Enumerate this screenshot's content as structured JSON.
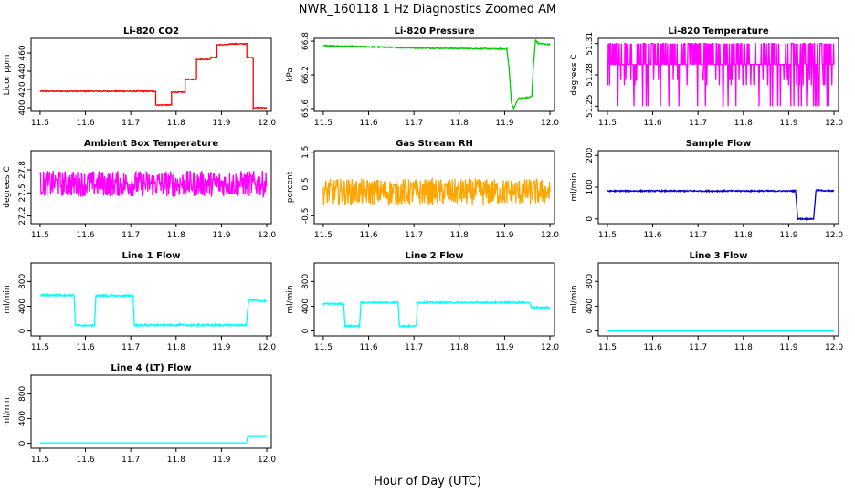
{
  "figure": {
    "title": "NWR_160118  1 Hz Diagnostics Zoomed AM",
    "xlabel": "Hour of Day (UTC)"
  },
  "chart_data": [
    {
      "type": "line",
      "title": "Li-820 CO2",
      "ylabel": "Licor ppm",
      "color": "#ff0000",
      "xlim": [
        11.48,
        12.01
      ],
      "xticks": [
        "11.5",
        "11.6",
        "11.7",
        "11.8",
        "11.9",
        "12.0"
      ],
      "ylim": [
        396,
        476
      ],
      "yticks": [
        "400",
        "420",
        "440",
        "460"
      ],
      "noise": 0.5,
      "x": [
        11.5,
        11.755,
        11.755,
        11.79,
        11.79,
        11.82,
        11.82,
        11.845,
        11.845,
        11.875,
        11.875,
        11.89,
        11.89,
        11.917,
        11.917,
        11.956,
        11.956,
        11.97,
        11.97,
        11.97,
        12.0
      ],
      "y": [
        418,
        418,
        403,
        403,
        417,
        417,
        431,
        431,
        453,
        453,
        455,
        455,
        469,
        469,
        470,
        470,
        455,
        455,
        420,
        400,
        400
      ]
    },
    {
      "type": "line",
      "title": "Li-820 Pressure",
      "ylabel": "kPa",
      "color": "#00cc00",
      "xlim": [
        11.48,
        12.01
      ],
      "xticks": [
        "11.5",
        "11.6",
        "11.7",
        "11.8",
        "11.9",
        "12.0"
      ],
      "ylim": [
        65.55,
        66.85
      ],
      "yticks": [
        "65.6",
        "66.2",
        "66.8"
      ],
      "noise": 0.01,
      "x": [
        11.5,
        11.6,
        11.7,
        11.8,
        11.905,
        11.91,
        11.915,
        11.92,
        11.93,
        11.955,
        11.96,
        11.963,
        11.968,
        11.975,
        12.0
      ],
      "y": [
        66.72,
        66.7,
        66.68,
        66.67,
        66.66,
        66.3,
        65.7,
        65.6,
        65.78,
        65.8,
        65.82,
        66.3,
        66.82,
        66.76,
        66.74
      ]
    },
    {
      "type": "line",
      "title": "Li-820 Temperature",
      "ylabel": "degrees C",
      "color": "#ff00ff",
      "xlim": [
        11.48,
        12.01
      ],
      "xticks": [
        "11.5",
        "11.6",
        "11.7",
        "11.8",
        "11.9",
        "12.0"
      ],
      "ylim": [
        51.245,
        51.315
      ],
      "yticks": [
        "51.25",
        "51.28",
        "51.31"
      ],
      "x": [
        11.5,
        12.0
      ],
      "y": [
        51.29,
        51.29
      ],
      "levels": [
        51.25,
        51.27,
        51.275,
        51.29,
        51.31
      ]
    },
    {
      "type": "line",
      "title": "Ambient Box Temperature",
      "ylabel": "degrees C",
      "color": "#ff00ff",
      "xlim": [
        11.48,
        12.01
      ],
      "xticks": [
        "11.5",
        "11.6",
        "11.7",
        "11.8",
        "11.9",
        "12.0"
      ],
      "ylim": [
        27.1,
        28.05
      ],
      "yticks": [
        "27.2",
        "27.5",
        "27.8"
      ],
      "noise": 0.17,
      "x": [
        11.5,
        12.0
      ],
      "y": [
        27.62,
        27.62
      ]
    },
    {
      "type": "line",
      "title": "Gas Stream RH",
      "ylabel": "percent",
      "color": "#ffa500",
      "xlim": [
        11.48,
        12.01
      ],
      "xticks": [
        "11.5",
        "11.6",
        "11.7",
        "11.8",
        "11.9",
        "12.0"
      ],
      "ylim": [
        -0.75,
        1.55
      ],
      "yticks": [
        "-0.5",
        "0.5",
        "1.5"
      ],
      "noise": 0.42,
      "x": [
        11.5,
        12.0
      ],
      "y": [
        0.25,
        0.25
      ]
    },
    {
      "type": "line",
      "title": "Sample Flow",
      "ylabel": "ml/min",
      "color": "#0000cc",
      "xlim": [
        11.48,
        12.01
      ],
      "xticks": [
        "11.5",
        "11.6",
        "11.7",
        "11.8",
        "11.9",
        "12.0"
      ],
      "ylim": [
        -15,
        215
      ],
      "yticks": [
        "0",
        "100",
        "200"
      ],
      "noise": 2,
      "x": [
        11.5,
        11.915,
        11.918,
        11.92,
        11.955,
        11.958,
        11.96,
        12.0
      ],
      "y": [
        88,
        88,
        40,
        0,
        0,
        50,
        90,
        88
      ]
    },
    {
      "type": "line",
      "title": "Line 1 Flow",
      "ylabel": "ml/min",
      "color": "#00ffff",
      "xlim": [
        11.48,
        12.01
      ],
      "xticks": [
        "11.5",
        "11.6",
        "11.7",
        "11.8",
        "11.9",
        "12.0"
      ],
      "ylim": [
        -80,
        1100
      ],
      "yticks": [
        "0",
        "400",
        "800"
      ],
      "noise": 15,
      "x": [
        11.5,
        11.575,
        11.578,
        11.62,
        11.623,
        11.705,
        11.708,
        11.955,
        11.96,
        12.0
      ],
      "y": [
        580,
        580,
        90,
        90,
        570,
        570,
        95,
        95,
        500,
        480
      ]
    },
    {
      "type": "line",
      "title": "Line 2 Flow",
      "ylabel": "ml/min",
      "color": "#00ffff",
      "xlim": [
        11.48,
        12.01
      ],
      "xticks": [
        "11.5",
        "11.6",
        "11.7",
        "11.8",
        "11.9",
        "12.0"
      ],
      "ylim": [
        -80,
        1100
      ],
      "yticks": [
        "0",
        "400",
        "800"
      ],
      "noise": 12,
      "x": [
        11.5,
        11.545,
        11.548,
        11.58,
        11.583,
        11.665,
        11.668,
        11.705,
        11.708,
        11.955,
        11.96,
        12.0
      ],
      "y": [
        440,
        440,
        80,
        80,
        460,
        460,
        80,
        80,
        460,
        460,
        380,
        380
      ]
    },
    {
      "type": "line",
      "title": "Line 3 Flow",
      "ylabel": "ml/min",
      "color": "#00ffff",
      "xlim": [
        11.48,
        12.01
      ],
      "xticks": [
        "11.5",
        "11.6",
        "11.7",
        "11.8",
        "11.9",
        "12.0"
      ],
      "ylim": [
        -80,
        1100
      ],
      "yticks": [
        "0",
        "400",
        "800"
      ],
      "noise": 0,
      "x": [
        11.5,
        12.0
      ],
      "y": [
        0,
        0
      ]
    },
    {
      "type": "line",
      "title": "Line 4 (LT) Flow",
      "ylabel": "ml/min",
      "color": "#00ffff",
      "xlim": [
        11.48,
        12.01
      ],
      "xticks": [
        "11.5",
        "11.6",
        "11.7",
        "11.8",
        "11.9",
        "12.0"
      ],
      "ylim": [
        -80,
        1100
      ],
      "yticks": [
        "0",
        "400",
        "800"
      ],
      "noise": 0,
      "x": [
        11.5,
        11.955,
        11.958,
        12.0
      ],
      "y": [
        5,
        5,
        110,
        110
      ]
    }
  ]
}
